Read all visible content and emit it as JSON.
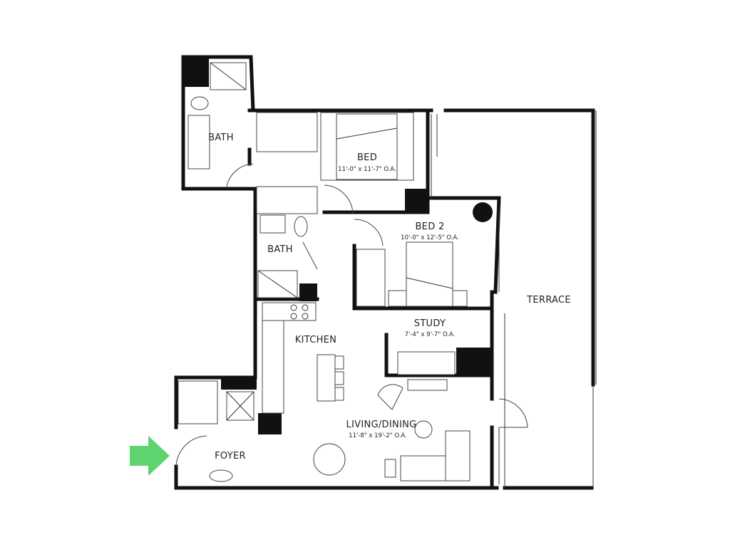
{
  "rooms": {
    "bath1": {
      "label": "BATH"
    },
    "bed": {
      "label": "BED",
      "dimensions": "11'-0\" x 11'-7\" O.A."
    },
    "bed2": {
      "label": "BED 2",
      "dimensions": "10'-0\" x 12'-5\" O.A."
    },
    "bath2": {
      "label": "BATH"
    },
    "study": {
      "label": "STUDY",
      "dimensions": "7'-4\" x 9'-7\" O.A."
    },
    "kitchen": {
      "label": "KITCHEN"
    },
    "living": {
      "label": "LIVING/DINING",
      "dimensions": "11'-8\" x 19'-2\" O.A."
    },
    "foyer": {
      "label": "FOYER"
    },
    "terrace": {
      "label": "TERRACE"
    }
  },
  "entry_arrow": {
    "icon": "entry-arrow-icon",
    "color": "#5fd36f"
  },
  "colors": {
    "wall": "#111111",
    "line": "#444444"
  }
}
